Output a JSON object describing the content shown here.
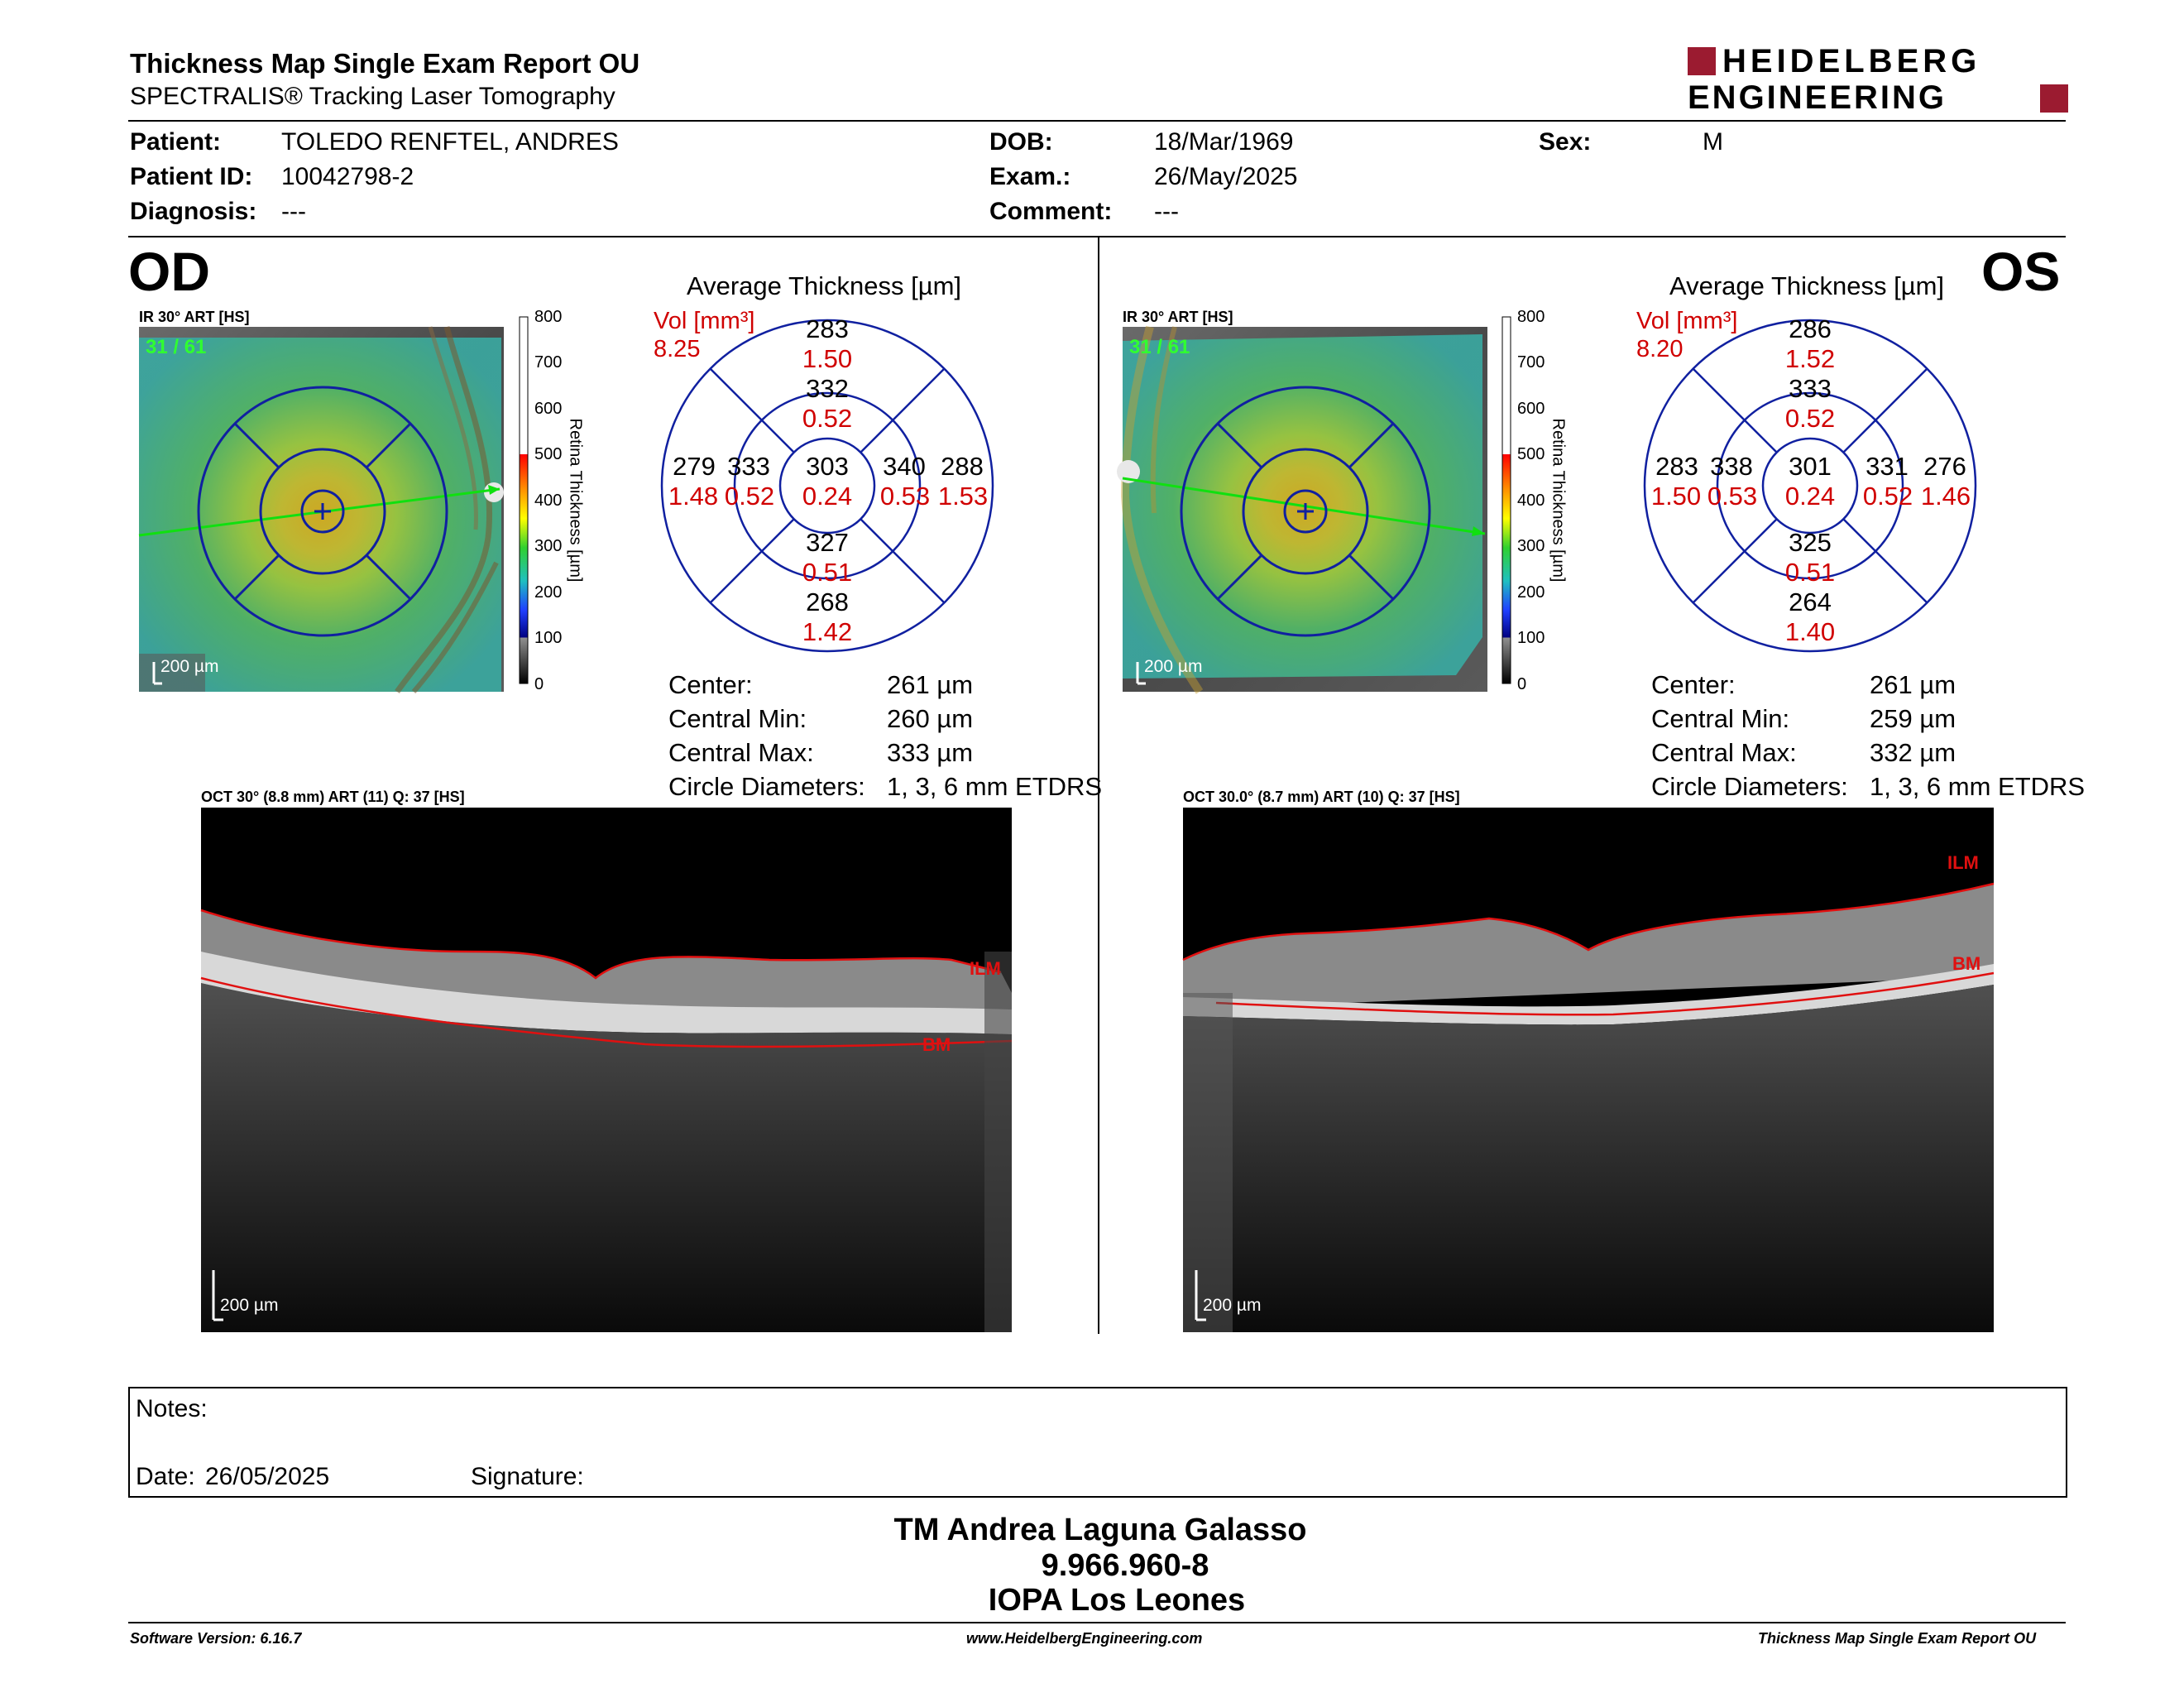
{
  "header": {
    "title": "Thickness Map Single Exam Report OU",
    "subtitle": "SPECTRALIS® Tracking Laser Tomography",
    "logo_line1": "HEIDELBERG",
    "logo_line2": "ENGINEERING"
  },
  "patient": {
    "name_label": "Patient:",
    "name": "TOLEDO RENFTEL, ANDRES",
    "id_label": "Patient ID:",
    "id": "10042798-2",
    "diagnosis_label": "Diagnosis:",
    "diagnosis": "---",
    "dob_label": "DOB:",
    "dob": "18/Mar/1969",
    "exam_label": "Exam.:",
    "exam": "26/May/2025",
    "comment_label": "Comment:",
    "comment": "---",
    "sex_label": "Sex:",
    "sex": "M"
  },
  "od": {
    "eye": "OD",
    "ir_label": "IR 30° ART [HS]",
    "ir_frames": "31 / 61",
    "scale_bar": "200 µm",
    "avg_title": "Average Thickness [µm]",
    "vol_label": "Vol [mm³]",
    "vol_total": "8.25",
    "sectors": {
      "superior_outer": {
        "t": "283",
        "v": "1.50"
      },
      "superior_inner": {
        "t": "332",
        "v": "0.52"
      },
      "temporal_outer": {
        "t": "279",
        "v": "1.48"
      },
      "temporal_inner": {
        "t": "333",
        "v": "0.52"
      },
      "center": {
        "t": "303",
        "v": "0.24"
      },
      "nasal_inner": {
        "t": "340",
        "v": "0.53"
      },
      "nasal_outer": {
        "t": "288",
        "v": "1.53"
      },
      "inferior_inner": {
        "t": "327",
        "v": "0.51"
      },
      "inferior_outer": {
        "t": "268",
        "v": "1.42"
      }
    },
    "metrics": {
      "center_label": "Center:",
      "center": "261 µm",
      "cmin_label": "Central Min:",
      "cmin": "260 µm",
      "cmax_label": "Central Max:",
      "cmax": "333 µm",
      "diam_label": "Circle Diameters:",
      "diam": "1, 3, 6 mm ETDRS"
    },
    "oct_label": "OCT 30° (8.8 mm) ART (11) Q: 37 [HS]",
    "ilm": "ILM",
    "bm": "BM",
    "oct_scale": "200 µm"
  },
  "os": {
    "eye": "OS",
    "ir_label": "IR 30° ART [HS]",
    "ir_frames": "31 / 61",
    "scale_bar": "200 µm",
    "avg_title": "Average Thickness [µm]",
    "vol_label": "Vol [mm³]",
    "vol_total": "8.20",
    "sectors": {
      "superior_outer": {
        "t": "286",
        "v": "1.52"
      },
      "superior_inner": {
        "t": "333",
        "v": "0.52"
      },
      "temporal_outer": {
        "t": "283",
        "v": "1.50"
      },
      "temporal_inner": {
        "t": "338",
        "v": "0.53"
      },
      "center": {
        "t": "301",
        "v": "0.24"
      },
      "nasal_inner": {
        "t": "331",
        "v": "0.52"
      },
      "nasal_outer": {
        "t": "276",
        "v": "1.46"
      },
      "inferior_inner": {
        "t": "325",
        "v": "0.51"
      },
      "inferior_outer": {
        "t": "264",
        "v": "1.40"
      }
    },
    "metrics": {
      "center_label": "Center:",
      "center": "261 µm",
      "cmin_label": "Central Min:",
      "cmin": "259 µm",
      "cmax_label": "Central Max:",
      "cmax": "332 µm",
      "diam_label": "Circle Diameters:",
      "diam": "1, 3, 6 mm ETDRS"
    },
    "oct_label": "OCT 30.0° (8.7 mm) ART (10) Q: 37 [HS]",
    "ilm": "ILM",
    "bm": "BM",
    "oct_scale": "200 µm"
  },
  "colorscale": {
    "title": "Retina Thickness [µm]",
    "ticks": [
      "800",
      "700",
      "600",
      "500",
      "400",
      "300",
      "200",
      "100",
      "0"
    ]
  },
  "notes": {
    "notes_label": "Notes:",
    "date_label": "Date:",
    "date": "26/05/2025",
    "signature_label": "Signature:"
  },
  "signature_block": {
    "name": "TM Andrea Laguna Galasso",
    "rut": "9.966.960-8",
    "clinic": "IOPA Los Leones"
  },
  "footer": {
    "software": "Software Version: 6.16.7",
    "website": "www.HeidelbergEngineering.com",
    "report": "Thickness Map Single Exam Report OU"
  },
  "colors": {
    "grid_blue": "#1020a0",
    "vol_red": "#d00000",
    "logo_red": "#9b1b30"
  }
}
